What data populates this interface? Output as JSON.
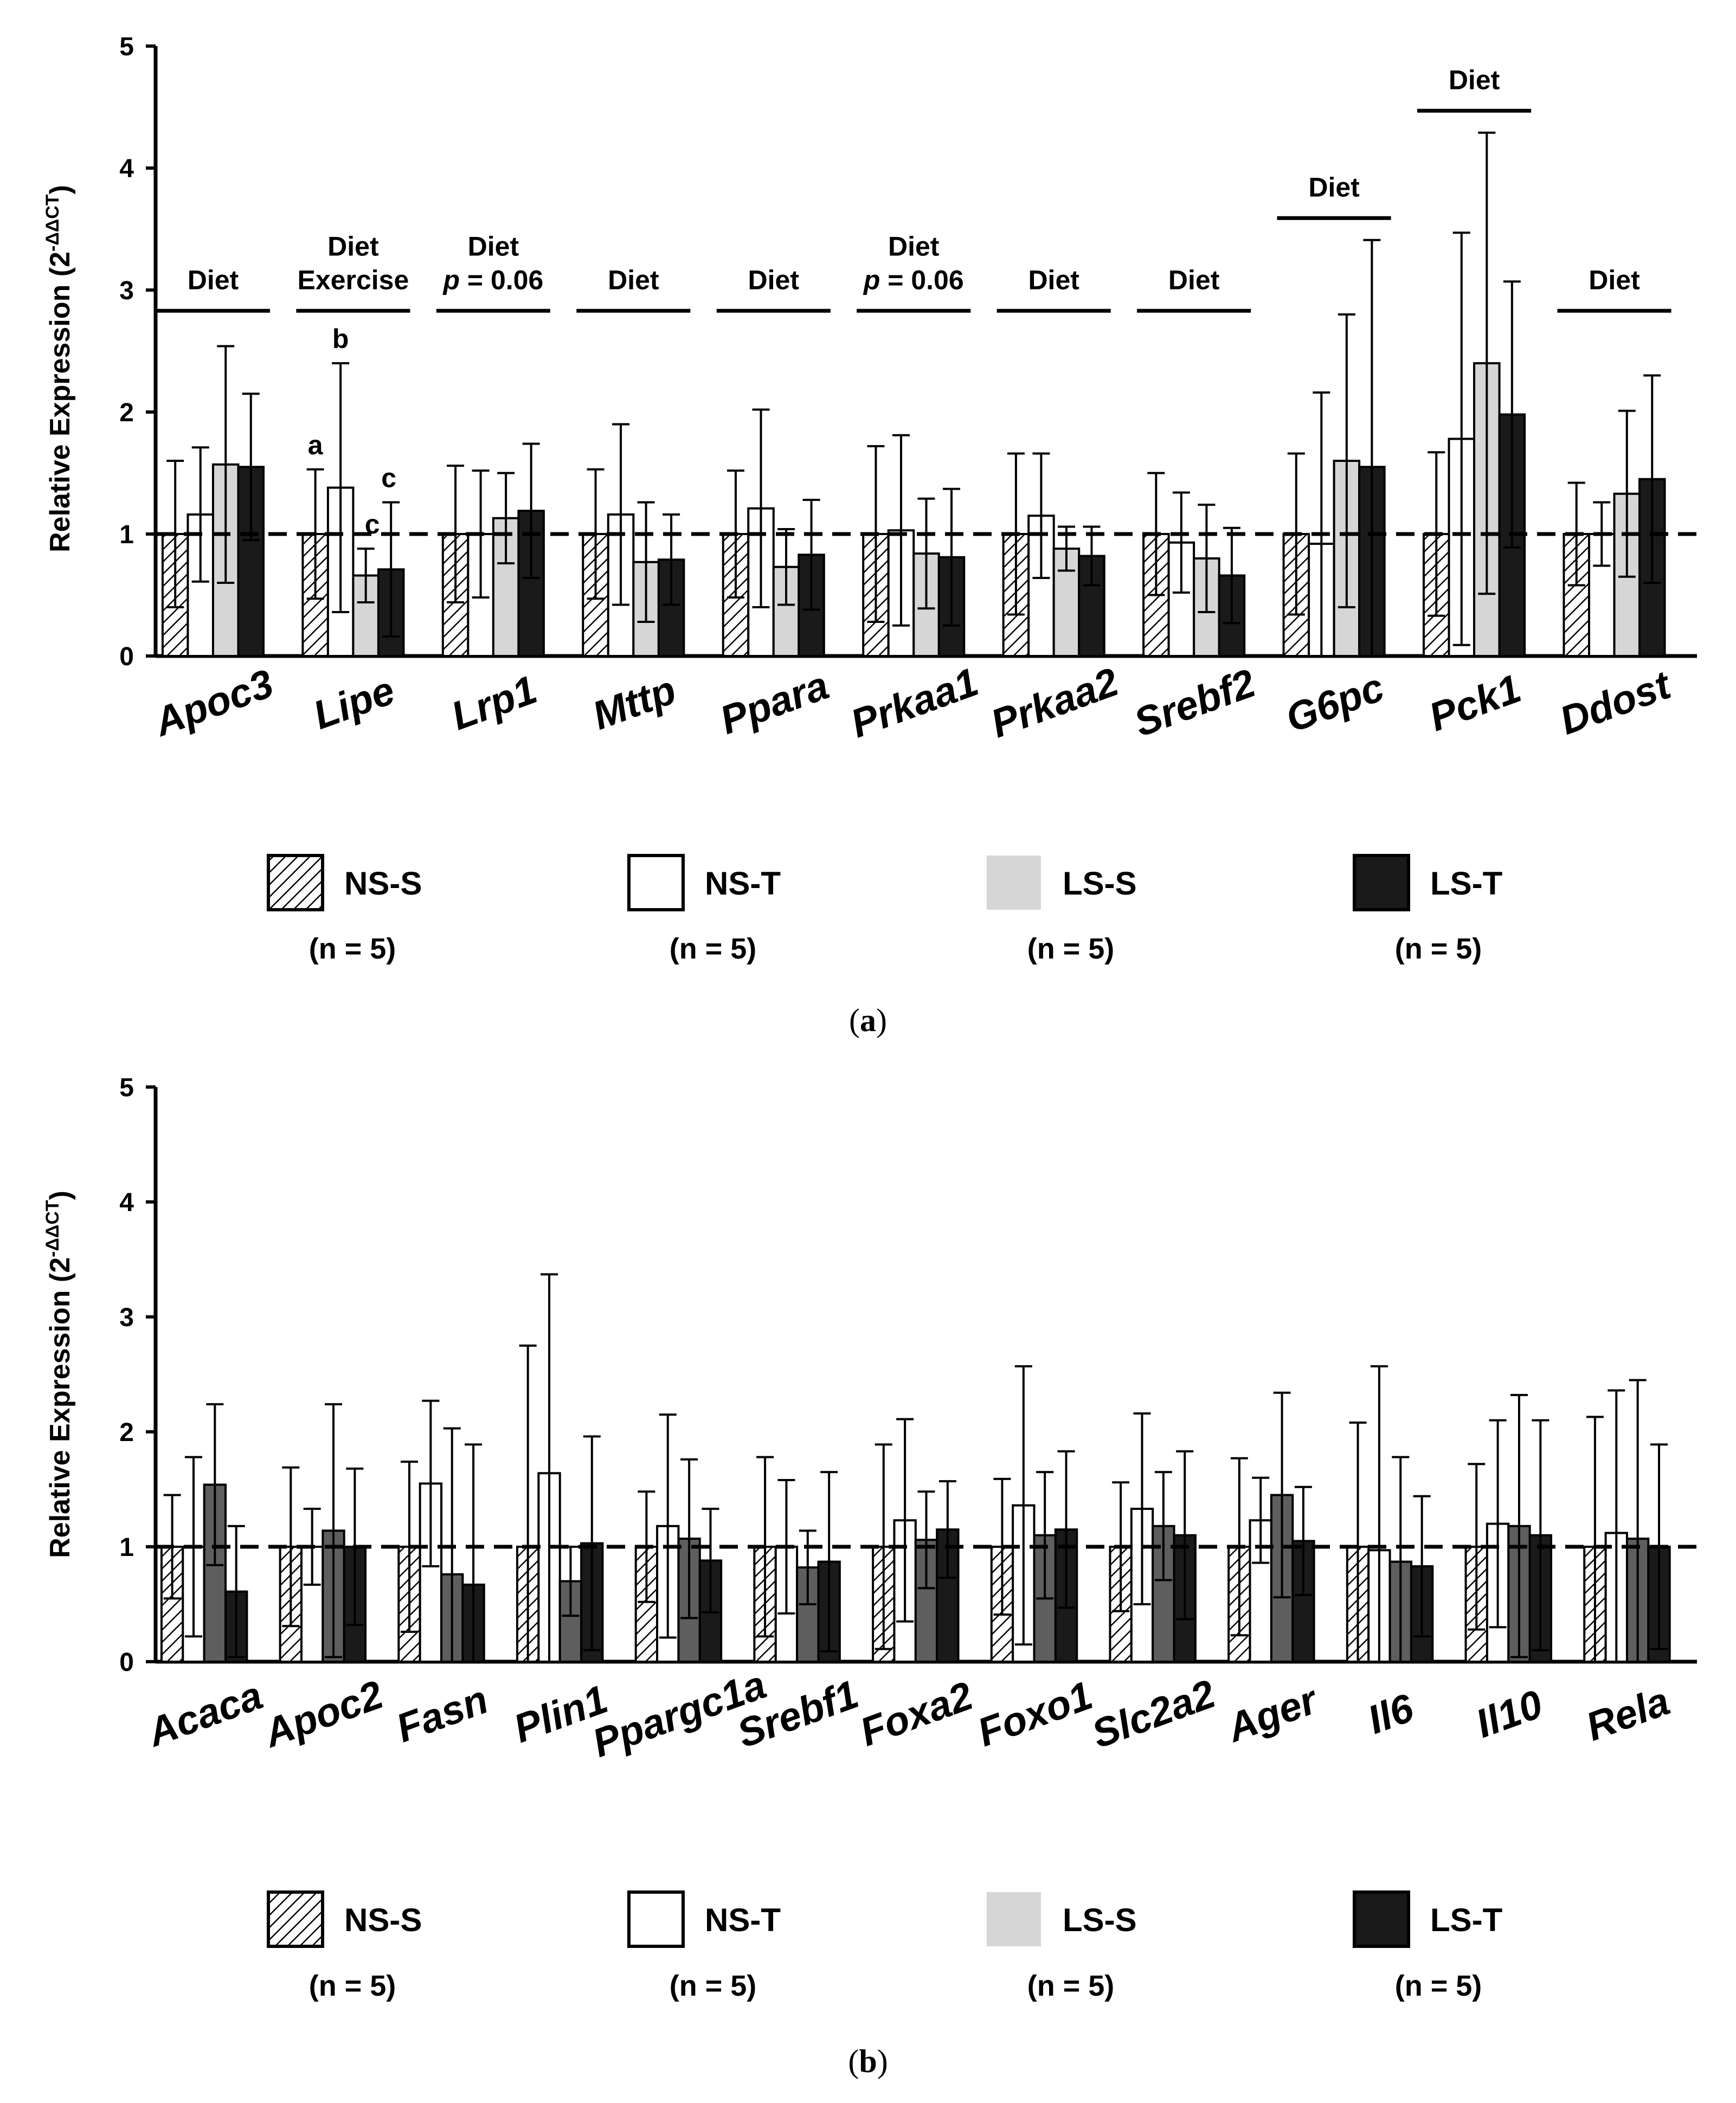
{
  "colors": {
    "ns_s": "#ffffff",
    "ns_t": "#ffffff",
    "ls_s_a": "#d6d6d6",
    "ls_s_b": "#5e5e5e",
    "ls_t": "#1a1a1a",
    "axis": "#000000"
  },
  "legend": {
    "items": [
      {
        "label": "NS-S",
        "n": "(n = 5)",
        "style": "hatch"
      },
      {
        "label": "NS-T",
        "n": "(n = 5)",
        "style": "white"
      },
      {
        "label": "LS-S",
        "n": "(n = 5)",
        "style": "lightgray"
      },
      {
        "label": "LS-T",
        "n": "(n = 5)",
        "style": "black"
      }
    ]
  },
  "chart_data": [
    {
      "id": "a",
      "caption_letter": "a",
      "type": "bar",
      "ylabel": "Relative Expression (2",
      "ylabel_sup": "-ΔΔCT",
      "ylabel_close": ")",
      "ylim": [
        0,
        5
      ],
      "yticks": [
        "0",
        "1",
        "2",
        "3",
        "4",
        "5"
      ],
      "reference_line": 1,
      "series_names": [
        "NS-S",
        "NS-T",
        "LS-S",
        "LS-T"
      ],
      "categories": [
        "Apoc3",
        "Lipe",
        "Lrp1",
        "Mttp",
        "Ppara",
        "Prkaa1",
        "Prkaa2",
        "Srebf2",
        "G6pc",
        "Pck1",
        "Ddost"
      ],
      "values": [
        [
          1.0,
          1.16,
          1.57,
          1.55
        ],
        [
          1.0,
          1.38,
          0.66,
          0.71
        ],
        [
          1.0,
          1.0,
          1.13,
          1.19
        ],
        [
          1.0,
          1.16,
          0.77,
          0.79
        ],
        [
          1.0,
          1.21,
          0.73,
          0.83
        ],
        [
          1.0,
          1.03,
          0.84,
          0.81
        ],
        [
          1.0,
          1.15,
          0.88,
          0.82
        ],
        [
          1.0,
          0.93,
          0.8,
          0.66
        ],
        [
          1.0,
          0.92,
          1.6,
          1.55
        ],
        [
          1.0,
          1.78,
          2.4,
          1.98
        ],
        [
          1.0,
          1.0,
          1.33,
          1.45
        ]
      ],
      "errors": [
        [
          0.6,
          0.55,
          0.97,
          0.6
        ],
        [
          0.53,
          1.02,
          0.22,
          0.55
        ],
        [
          0.56,
          0.52,
          0.37,
          0.55
        ],
        [
          0.53,
          0.74,
          0.49,
          0.37
        ],
        [
          0.52,
          0.81,
          0.31,
          0.45
        ],
        [
          0.72,
          0.78,
          0.45,
          0.56
        ],
        [
          0.66,
          0.51,
          0.18,
          0.24
        ],
        [
          0.5,
          0.41,
          0.44,
          0.39
        ],
        [
          0.66,
          1.24,
          1.2,
          1.86
        ],
        [
          0.67,
          1.69,
          1.89,
          1.09
        ],
        [
          0.42,
          0.26,
          0.68,
          0.85
        ]
      ],
      "annotations": [
        {
          "category": "Apoc3",
          "lines": [
            "Diet"
          ]
        },
        {
          "category": "Lipe",
          "lines": [
            "Diet",
            "Exercise"
          ]
        },
        {
          "category": "Lrp1",
          "lines": [
            "Diet",
            "p = 0.06"
          ]
        },
        {
          "category": "Mttp",
          "lines": [
            "Diet"
          ]
        },
        {
          "category": "Ppara",
          "lines": [
            "Diet"
          ]
        },
        {
          "category": "Prkaa1",
          "lines": [
            "Diet",
            "p = 0.06"
          ]
        },
        {
          "category": "Prkaa2",
          "lines": [
            "Diet"
          ]
        },
        {
          "category": "Srebf2",
          "lines": [
            "Diet"
          ]
        },
        {
          "category": "G6pc",
          "lines": [
            "Diet"
          ]
        },
        {
          "category": "Pck1",
          "lines": [
            "Diet"
          ]
        },
        {
          "category": "Ddost",
          "lines": [
            "Diet"
          ]
        }
      ],
      "significance_letters": [
        {
          "category": "Lipe",
          "series": 0,
          "letter": "a"
        },
        {
          "category": "Lipe",
          "series": 1,
          "letter": "b"
        },
        {
          "category": "Lipe",
          "series": 2,
          "letter": "c"
        },
        {
          "category": "Lipe",
          "series": 3,
          "letter": "c"
        }
      ]
    },
    {
      "id": "b",
      "caption_letter": "b",
      "type": "bar",
      "ylabel": "Relative Expression (2",
      "ylabel_sup": "-ΔΔCT",
      "ylabel_close": ")",
      "ylim": [
        0,
        5
      ],
      "yticks": [
        "0",
        "1",
        "2",
        "3",
        "4",
        "5"
      ],
      "reference_line": 1,
      "series_names": [
        "NS-S",
        "NS-T",
        "LS-S",
        "LS-T"
      ],
      "categories": [
        "Acaca",
        "Apoc2",
        "Fasn",
        "Plin1",
        "Ppargc1a",
        "Srebf1",
        "Foxa2",
        "Foxo1",
        "Slc2a2",
        "Ager",
        "Il6",
        "Il10",
        "Rela"
      ],
      "values": [
        [
          1.0,
          1.0,
          1.54,
          0.61
        ],
        [
          1.0,
          1.0,
          1.14,
          1.0
        ],
        [
          1.0,
          1.55,
          0.76,
          0.67
        ],
        [
          1.0,
          1.64,
          0.7,
          1.03
        ],
        [
          1.0,
          1.18,
          1.07,
          0.88
        ],
        [
          1.0,
          1.0,
          0.82,
          0.87
        ],
        [
          1.0,
          1.23,
          1.06,
          1.15
        ],
        [
          1.0,
          1.36,
          1.1,
          1.15
        ],
        [
          1.0,
          1.33,
          1.18,
          1.1
        ],
        [
          1.0,
          1.23,
          1.45,
          1.05
        ],
        [
          1.0,
          0.97,
          0.87,
          0.83
        ],
        [
          1.0,
          1.2,
          1.18,
          1.1
        ],
        [
          1.0,
          1.12,
          1.07,
          1.0
        ]
      ],
      "errors": [
        [
          0.45,
          0.78,
          0.7,
          0.57
        ],
        [
          0.69,
          0.33,
          1.1,
          0.68
        ],
        [
          0.74,
          0.72,
          1.27,
          1.22
        ],
        [
          1.75,
          1.73,
          0.3,
          0.93
        ],
        [
          0.48,
          0.97,
          0.69,
          0.45
        ],
        [
          0.78,
          0.58,
          0.32,
          0.78
        ],
        [
          0.89,
          0.88,
          0.42,
          0.42
        ],
        [
          0.59,
          1.21,
          0.55,
          0.68
        ],
        [
          0.56,
          0.83,
          0.47,
          0.73
        ],
        [
          0.77,
          0.37,
          0.89,
          0.47
        ],
        [
          1.08,
          1.6,
          0.91,
          0.61
        ],
        [
          0.72,
          0.9,
          1.14,
          1.0
        ],
        [
          1.13,
          1.24,
          1.38,
          0.89
        ]
      ]
    }
  ]
}
